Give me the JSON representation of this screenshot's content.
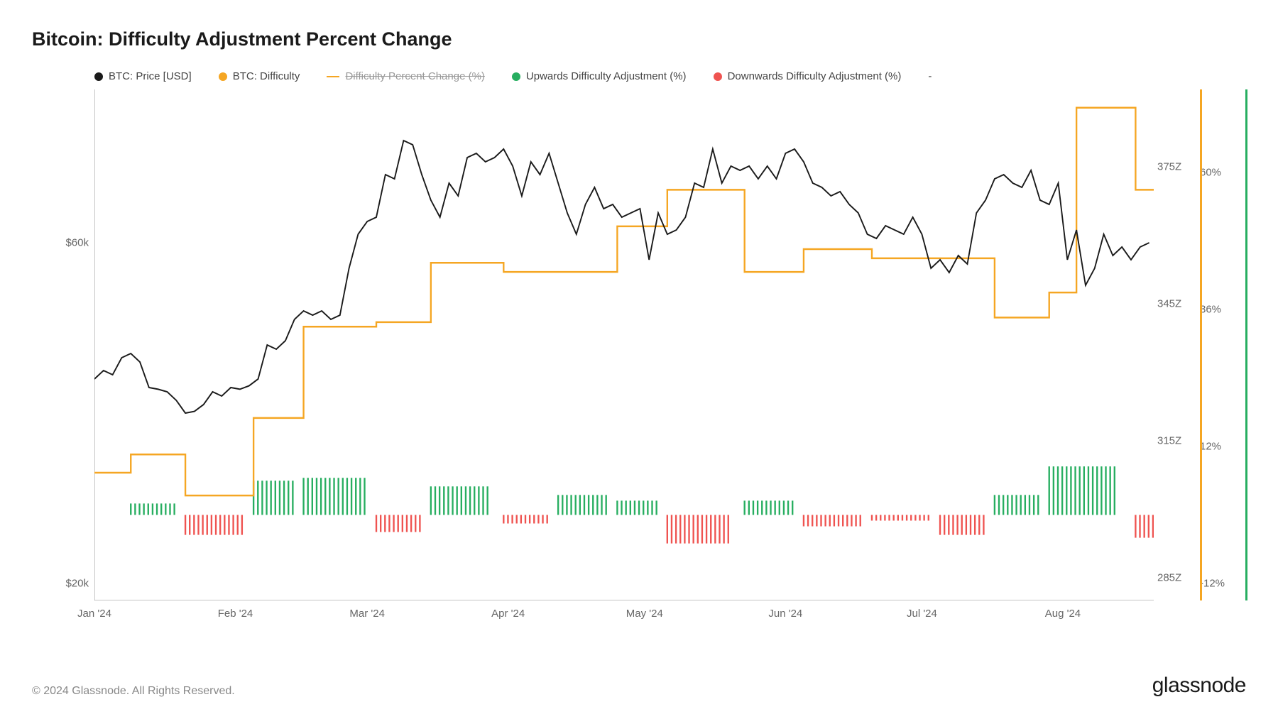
{
  "title": "Bitcoin: Difficulty Adjustment Percent Change",
  "copyright": "© 2024 Glassnode. All Rights Reserved.",
  "brand": "glassnode",
  "legend": {
    "price": "BTC: Price [USD]",
    "difficulty": "BTC: Difficulty",
    "pctchange": "Difficulty Percent Change (%)",
    "up": "Upwards Difficulty Adjustment (%)",
    "down": "Downwards Difficulty Adjustment (%)",
    "dash": "-"
  },
  "colors": {
    "price": "#1a1a1a",
    "difficulty": "#f5a623",
    "up": "#27ae60",
    "down": "#ef5350",
    "axis": "#888888",
    "bg": "#ffffff",
    "leftAxisBar": "#1a1a1a",
    "right1AxisBar": "#f5a623",
    "right2AxisBar": "#27ae60"
  },
  "chart": {
    "width_days": 233,
    "x_ticks": [
      {
        "pos": 0,
        "label": "Jan '24"
      },
      {
        "pos": 31,
        "label": "Feb '24"
      },
      {
        "pos": 60,
        "label": "Mar '24"
      },
      {
        "pos": 91,
        "label": "Apr '24"
      },
      {
        "pos": 121,
        "label": "May '24"
      },
      {
        "pos": 152,
        "label": "Jun '24"
      },
      {
        "pos": 182,
        "label": "Jul '24"
      },
      {
        "pos": 213,
        "label": "Aug '24"
      }
    ],
    "y_left": {
      "min": 18000,
      "max": 78000,
      "ticks": [
        {
          "v": 60000,
          "label": "$60k"
        },
        {
          "v": 20000,
          "label": "$20k"
        }
      ]
    },
    "y_right1": {
      "min": 280,
      "max": 392,
      "ticks": [
        {
          "v": 375,
          "label": "375Z"
        },
        {
          "v": 345,
          "label": "345Z"
        },
        {
          "v": 315,
          "label": "315Z"
        },
        {
          "v": 285,
          "label": "285Z"
        }
      ]
    },
    "y_right2": {
      "min": -15,
      "max": 74.6,
      "ticks": [
        {
          "v": 60,
          "label": "60%"
        },
        {
          "v": 36,
          "label": "36%"
        },
        {
          "v": 12,
          "label": "12%"
        },
        {
          "v": -12,
          "label": "-12%"
        }
      ]
    },
    "price_series": [
      [
        0,
        44000
      ],
      [
        2,
        45000
      ],
      [
        4,
        44500
      ],
      [
        6,
        46500
      ],
      [
        8,
        47000
      ],
      [
        10,
        46000
      ],
      [
        12,
        43000
      ],
      [
        14,
        42800
      ],
      [
        16,
        42500
      ],
      [
        18,
        41500
      ],
      [
        20,
        40000
      ],
      [
        22,
        40200
      ],
      [
        24,
        41000
      ],
      [
        26,
        42500
      ],
      [
        28,
        42000
      ],
      [
        30,
        43000
      ],
      [
        32,
        42800
      ],
      [
        34,
        43200
      ],
      [
        36,
        44000
      ],
      [
        38,
        48000
      ],
      [
        40,
        47500
      ],
      [
        42,
        48500
      ],
      [
        44,
        51000
      ],
      [
        46,
        52000
      ],
      [
        48,
        51500
      ],
      [
        50,
        52000
      ],
      [
        52,
        51000
      ],
      [
        54,
        51500
      ],
      [
        56,
        57000
      ],
      [
        58,
        61000
      ],
      [
        60,
        62500
      ],
      [
        62,
        63000
      ],
      [
        64,
        68000
      ],
      [
        66,
        67500
      ],
      [
        68,
        72000
      ],
      [
        70,
        71500
      ],
      [
        72,
        68000
      ],
      [
        74,
        65000
      ],
      [
        76,
        63000
      ],
      [
        78,
        67000
      ],
      [
        80,
        65500
      ],
      [
        82,
        70000
      ],
      [
        84,
        70500
      ],
      [
        86,
        69500
      ],
      [
        88,
        70000
      ],
      [
        90,
        71000
      ],
      [
        92,
        69000
      ],
      [
        94,
        65500
      ],
      [
        96,
        69500
      ],
      [
        98,
        68000
      ],
      [
        100,
        70500
      ],
      [
        102,
        67000
      ],
      [
        104,
        63500
      ],
      [
        106,
        61000
      ],
      [
        108,
        64500
      ],
      [
        110,
        66500
      ],
      [
        112,
        64000
      ],
      [
        114,
        64500
      ],
      [
        116,
        63000
      ],
      [
        118,
        63500
      ],
      [
        120,
        64000
      ],
      [
        122,
        58000
      ],
      [
        124,
        63500
      ],
      [
        126,
        61000
      ],
      [
        128,
        61500
      ],
      [
        130,
        63000
      ],
      [
        132,
        67000
      ],
      [
        134,
        66500
      ],
      [
        136,
        71000
      ],
      [
        138,
        67000
      ],
      [
        140,
        69000
      ],
      [
        142,
        68500
      ],
      [
        144,
        69000
      ],
      [
        146,
        67500
      ],
      [
        148,
        69000
      ],
      [
        150,
        67500
      ],
      [
        152,
        70500
      ],
      [
        154,
        71000
      ],
      [
        156,
        69500
      ],
      [
        158,
        67000
      ],
      [
        160,
        66500
      ],
      [
        162,
        65500
      ],
      [
        164,
        66000
      ],
      [
        166,
        64500
      ],
      [
        168,
        63500
      ],
      [
        170,
        61000
      ],
      [
        172,
        60500
      ],
      [
        174,
        62000
      ],
      [
        176,
        61500
      ],
      [
        178,
        61000
      ],
      [
        180,
        63000
      ],
      [
        182,
        61000
      ],
      [
        184,
        57000
      ],
      [
        186,
        58000
      ],
      [
        188,
        56500
      ],
      [
        190,
        58500
      ],
      [
        192,
        57500
      ],
      [
        194,
        63500
      ],
      [
        196,
        65000
      ],
      [
        198,
        67500
      ],
      [
        200,
        68000
      ],
      [
        202,
        67000
      ],
      [
        204,
        66500
      ],
      [
        206,
        68500
      ],
      [
        208,
        65000
      ],
      [
        210,
        64500
      ],
      [
        212,
        67000
      ],
      [
        214,
        58000
      ],
      [
        216,
        61500
      ],
      [
        218,
        55000
      ],
      [
        220,
        57000
      ],
      [
        222,
        61000
      ],
      [
        224,
        58500
      ],
      [
        226,
        59500
      ],
      [
        228,
        58000
      ],
      [
        230,
        59500
      ],
      [
        232,
        60000
      ]
    ],
    "difficulty_steps": [
      {
        "start": 0,
        "end": 8,
        "v": 308
      },
      {
        "start": 8,
        "end": 20,
        "v": 312
      },
      {
        "start": 20,
        "end": 35,
        "v": 303
      },
      {
        "start": 35,
        "end": 46,
        "v": 320
      },
      {
        "start": 46,
        "end": 62,
        "v": 340
      },
      {
        "start": 62,
        "end": 74,
        "v": 341
      },
      {
        "start": 74,
        "end": 90,
        "v": 354
      },
      {
        "start": 90,
        "end": 102,
        "v": 352
      },
      {
        "start": 102,
        "end": 115,
        "v": 352
      },
      {
        "start": 115,
        "end": 126,
        "v": 362
      },
      {
        "start": 126,
        "end": 143,
        "v": 370
      },
      {
        "start": 143,
        "end": 156,
        "v": 352
      },
      {
        "start": 156,
        "end": 171,
        "v": 357
      },
      {
        "start": 171,
        "end": 186,
        "v": 355
      },
      {
        "start": 186,
        "end": 198,
        "v": 355
      },
      {
        "start": 198,
        "end": 210,
        "v": 342
      },
      {
        "start": 210,
        "end": 216,
        "v": 347.5
      },
      {
        "start": 216,
        "end": 229,
        "v": 388
      },
      {
        "start": 229,
        "end": 233,
        "v": 370
      }
    ],
    "bars": [
      {
        "start": 8,
        "end": 18,
        "v": 2.0,
        "dir": "up"
      },
      {
        "start": 20,
        "end": 33,
        "v": -3.5,
        "dir": "down"
      },
      {
        "start": 35,
        "end": 44,
        "v": 6.0,
        "dir": "up"
      },
      {
        "start": 46,
        "end": 60,
        "v": 6.5,
        "dir": "up"
      },
      {
        "start": 62,
        "end": 72,
        "v": -3.0,
        "dir": "down"
      },
      {
        "start": 74,
        "end": 87,
        "v": 5.0,
        "dir": "up"
      },
      {
        "start": 90,
        "end": 100,
        "v": -1.5,
        "dir": "down"
      },
      {
        "start": 102,
        "end": 113,
        "v": 3.5,
        "dir": "up"
      },
      {
        "start": 115,
        "end": 124,
        "v": 2.5,
        "dir": "up"
      },
      {
        "start": 126,
        "end": 140,
        "v": -5.0,
        "dir": "down"
      },
      {
        "start": 143,
        "end": 154,
        "v": 2.5,
        "dir": "up"
      },
      {
        "start": 156,
        "end": 169,
        "v": -2.0,
        "dir": "down"
      },
      {
        "start": 171,
        "end": 184,
        "v": -1.0,
        "dir": "down"
      },
      {
        "start": 186,
        "end": 196,
        "v": -3.5,
        "dir": "down"
      },
      {
        "start": 198,
        "end": 208,
        "v": 3.5,
        "dir": "up"
      },
      {
        "start": 210,
        "end": 225,
        "v": 8.5,
        "dir": "up"
      },
      {
        "start": 229,
        "end": 233,
        "v": -4.0,
        "dir": "down"
      }
    ]
  }
}
